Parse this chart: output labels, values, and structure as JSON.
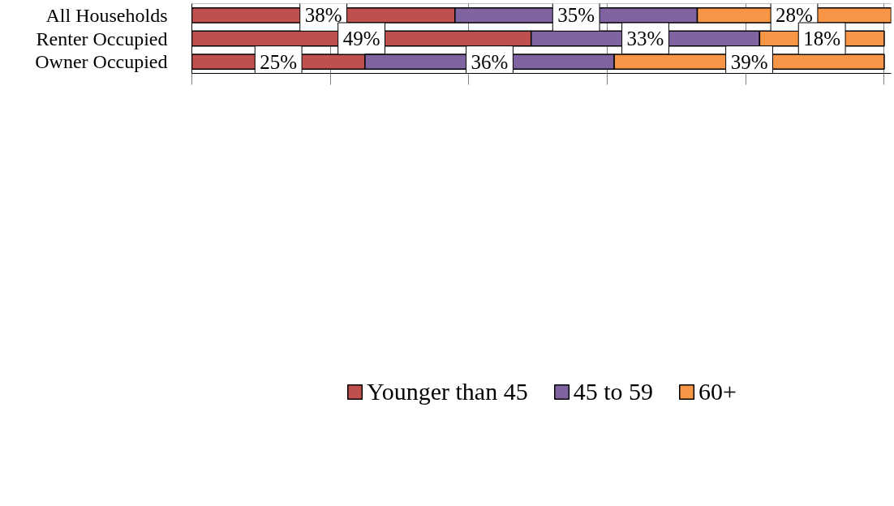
{
  "chart_data": {
    "type": "bar",
    "orientation": "horizontal",
    "stacked": true,
    "categories": [
      "All Households",
      "Renter Occupied",
      "Owner Occupied"
    ],
    "series": [
      {
        "name": "Younger than 45",
        "color": "#c0504d",
        "values": [
          38,
          49,
          25
        ],
        "value_labels": [
          "38%",
          "49%",
          "25%"
        ]
      },
      {
        "name": "45 to 59",
        "color": "#8064a2",
        "values": [
          35,
          33,
          36
        ],
        "value_labels": [
          "35%",
          "33%",
          "36%"
        ]
      },
      {
        "name": "60+",
        "color": "#f79646",
        "values": [
          28,
          18,
          39
        ],
        "value_labels": [
          "28%",
          "18%",
          "39%"
        ]
      }
    ],
    "tick_labels": "y",
    "grid": "x",
    "legend": "bottom"
  }
}
